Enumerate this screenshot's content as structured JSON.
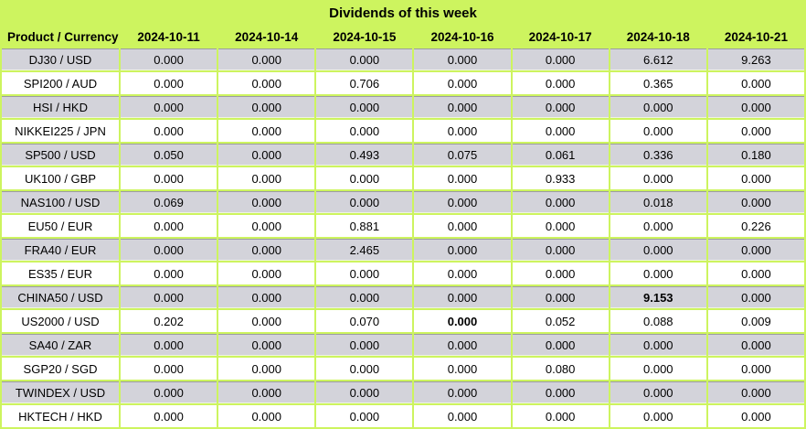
{
  "title": "Dividends of this week",
  "colors": {
    "header_bg": "#CDF45F",
    "row_alt_bg": "#D3D3DA",
    "row_bg": "#FFFFFF",
    "alt_row_border_top": "#9B9BA3",
    "alt_row_border_bottom": "#EFF4E0",
    "text": "#000000"
  },
  "table": {
    "product_header": "Product / Currency",
    "date_headers": [
      "2024-10-11",
      "2024-10-14",
      "2024-10-15",
      "2024-10-16",
      "2024-10-17",
      "2024-10-18",
      "2024-10-21"
    ],
    "rows": [
      {
        "product": "DJ30 / USD",
        "values": [
          "0.000",
          "0.000",
          "0.000",
          "0.000",
          "0.000",
          "6.612",
          "9.263"
        ],
        "bold_cols": []
      },
      {
        "product": "SPI200 / AUD",
        "values": [
          "0.000",
          "0.000",
          "0.706",
          "0.000",
          "0.000",
          "0.365",
          "0.000"
        ],
        "bold_cols": []
      },
      {
        "product": "HSI / HKD",
        "values": [
          "0.000",
          "0.000",
          "0.000",
          "0.000",
          "0.000",
          "0.000",
          "0.000"
        ],
        "bold_cols": []
      },
      {
        "product": "NIKKEI225 / JPN",
        "values": [
          "0.000",
          "0.000",
          "0.000",
          "0.000",
          "0.000",
          "0.000",
          "0.000"
        ],
        "bold_cols": []
      },
      {
        "product": "SP500 / USD",
        "values": [
          "0.050",
          "0.000",
          "0.493",
          "0.075",
          "0.061",
          "0.336",
          "0.180"
        ],
        "bold_cols": []
      },
      {
        "product": "UK100 / GBP",
        "values": [
          "0.000",
          "0.000",
          "0.000",
          "0.000",
          "0.933",
          "0.000",
          "0.000"
        ],
        "bold_cols": []
      },
      {
        "product": "NAS100 / USD",
        "values": [
          "0.069",
          "0.000",
          "0.000",
          "0.000",
          "0.000",
          "0.018",
          "0.000"
        ],
        "bold_cols": []
      },
      {
        "product": "EU50 / EUR",
        "values": [
          "0.000",
          "0.000",
          "0.881",
          "0.000",
          "0.000",
          "0.000",
          "0.226"
        ],
        "bold_cols": []
      },
      {
        "product": "FRA40 / EUR",
        "values": [
          "0.000",
          "0.000",
          "2.465",
          "0.000",
          "0.000",
          "0.000",
          "0.000"
        ],
        "bold_cols": []
      },
      {
        "product": "ES35 / EUR",
        "values": [
          "0.000",
          "0.000",
          "0.000",
          "0.000",
          "0.000",
          "0.000",
          "0.000"
        ],
        "bold_cols": []
      },
      {
        "product": "CHINA50 / USD",
        "values": [
          "0.000",
          "0.000",
          "0.000",
          "0.000",
          "0.000",
          "9.153",
          "0.000"
        ],
        "bold_cols": [
          5
        ]
      },
      {
        "product": "US2000 / USD",
        "values": [
          "0.202",
          "0.000",
          "0.070",
          "0.000",
          "0.052",
          "0.088",
          "0.009"
        ],
        "bold_cols": [
          3
        ]
      },
      {
        "product": "SA40 / ZAR",
        "values": [
          "0.000",
          "0.000",
          "0.000",
          "0.000",
          "0.000",
          "0.000",
          "0.000"
        ],
        "bold_cols": []
      },
      {
        "product": "SGP20 / SGD",
        "values": [
          "0.000",
          "0.000",
          "0.000",
          "0.000",
          "0.080",
          "0.000",
          "0.000"
        ],
        "bold_cols": []
      },
      {
        "product": "TWINDEX / USD",
        "values": [
          "0.000",
          "0.000",
          "0.000",
          "0.000",
          "0.000",
          "0.000",
          "0.000"
        ],
        "bold_cols": []
      },
      {
        "product": "HKTECH / HKD",
        "values": [
          "0.000",
          "0.000",
          "0.000",
          "0.000",
          "0.000",
          "0.000",
          "0.000"
        ],
        "bold_cols": []
      }
    ]
  }
}
